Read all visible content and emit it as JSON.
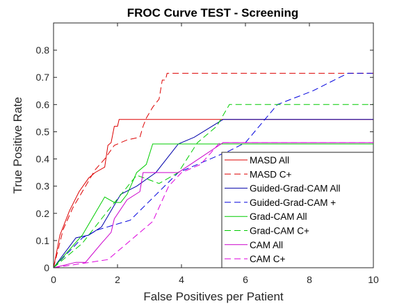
{
  "chart_data": {
    "type": "line",
    "title": "FROC Curve TEST - Screening",
    "xlabel": "False Positives per Patient",
    "ylabel": "True Positive Rate",
    "xlim": [
      0,
      10
    ],
    "ylim": [
      0,
      0.9
    ],
    "xticks": [
      0,
      2,
      4,
      6,
      8,
      10
    ],
    "yticks": [
      0,
      0.1,
      0.2,
      0.3,
      0.4,
      0.5,
      0.6,
      0.7,
      0.8
    ],
    "grid": false,
    "legend_position": "bottom-right",
    "series": [
      {
        "name": "MASD All",
        "color": "#dd0000",
        "dash": "solid",
        "points": [
          [
            0,
            0
          ],
          [
            0.2,
            0.12
          ],
          [
            0.5,
            0.21
          ],
          [
            0.8,
            0.28
          ],
          [
            1.1,
            0.33
          ],
          [
            1.3,
            0.35
          ],
          [
            1.6,
            0.37
          ],
          [
            1.65,
            0.41
          ],
          [
            1.7,
            0.45
          ],
          [
            1.8,
            0.46
          ],
          [
            1.9,
            0.52
          ],
          [
            2.0,
            0.52
          ],
          [
            2.05,
            0.545
          ],
          [
            4.0,
            0.545
          ],
          [
            10,
            0.545
          ]
        ]
      },
      {
        "name": "MASD C+",
        "color": "#dd0000",
        "dash": "dashed",
        "points": [
          [
            0,
            0
          ],
          [
            0.3,
            0.14
          ],
          [
            0.6,
            0.22
          ],
          [
            1.0,
            0.3
          ],
          [
            1.3,
            0.36
          ],
          [
            1.6,
            0.4
          ],
          [
            1.9,
            0.45
          ],
          [
            2.3,
            0.47
          ],
          [
            2.7,
            0.48
          ],
          [
            2.8,
            0.52
          ],
          [
            2.9,
            0.55
          ],
          [
            3.1,
            0.59
          ],
          [
            3.3,
            0.62
          ],
          [
            3.4,
            0.69
          ],
          [
            3.5,
            0.69
          ],
          [
            3.55,
            0.715
          ],
          [
            10,
            0.715
          ]
        ]
      },
      {
        "name": "Guided-Grad-CAM All",
        "color": "#0000aa",
        "dash": "solid",
        "points": [
          [
            0,
            0
          ],
          [
            0.7,
            0.11
          ],
          [
            1.1,
            0.12
          ],
          [
            1.5,
            0.15
          ],
          [
            2.1,
            0.27
          ],
          [
            2.6,
            0.3
          ],
          [
            3.2,
            0.35
          ],
          [
            3.9,
            0.455
          ],
          [
            4.4,
            0.48
          ],
          [
            5.3,
            0.545
          ],
          [
            10,
            0.545
          ]
        ]
      },
      {
        "name": "Guided-Grad-CAM +",
        "color": "#0000dd",
        "dash": "dashed",
        "points": [
          [
            0,
            0
          ],
          [
            0.9,
            0.11
          ],
          [
            1.4,
            0.14
          ],
          [
            2.4,
            0.175
          ],
          [
            3.9,
            0.35
          ],
          [
            4.9,
            0.4
          ],
          [
            5.5,
            0.43
          ],
          [
            6.0,
            0.46
          ],
          [
            7.0,
            0.6
          ],
          [
            8.1,
            0.65
          ],
          [
            9.2,
            0.715
          ],
          [
            10,
            0.715
          ]
        ]
      },
      {
        "name": "Grad-CAM All",
        "color": "#00cc00",
        "dash": "solid",
        "points": [
          [
            0,
            0
          ],
          [
            0.9,
            0.12
          ],
          [
            1.3,
            0.2
          ],
          [
            1.6,
            0.26
          ],
          [
            1.9,
            0.24
          ],
          [
            2.1,
            0.24
          ],
          [
            2.3,
            0.27
          ],
          [
            2.6,
            0.35
          ],
          [
            2.9,
            0.38
          ],
          [
            3.1,
            0.455
          ],
          [
            10,
            0.455
          ]
        ]
      },
      {
        "name": "Grad-CAM C+",
        "color": "#00cc00",
        "dash": "dashed",
        "points": [
          [
            0,
            0
          ],
          [
            0.9,
            0.09
          ],
          [
            1.7,
            0.21
          ],
          [
            2.6,
            0.34
          ],
          [
            3.3,
            0.31
          ],
          [
            3.9,
            0.35
          ],
          [
            4.5,
            0.46
          ],
          [
            5.1,
            0.52
          ],
          [
            5.5,
            0.6
          ],
          [
            10,
            0.6
          ]
        ]
      },
      {
        "name": "CAM All",
        "color": "#cc00cc",
        "dash": "solid",
        "points": [
          [
            0,
            0
          ],
          [
            0.7,
            0.02
          ],
          [
            1.0,
            0.02
          ],
          [
            1.5,
            0.09
          ],
          [
            1.8,
            0.13
          ],
          [
            1.9,
            0.18
          ],
          [
            2.3,
            0.25
          ],
          [
            2.7,
            0.28
          ],
          [
            2.8,
            0.35
          ],
          [
            3.9,
            0.35
          ],
          [
            5.3,
            0.46
          ],
          [
            10,
            0.46
          ]
        ]
      },
      {
        "name": "CAM C+",
        "color": "#dd00dd",
        "dash": "dashed",
        "points": [
          [
            0,
            0
          ],
          [
            1.7,
            0.03
          ],
          [
            2.5,
            0.11
          ],
          [
            3.1,
            0.17
          ],
          [
            3.6,
            0.3
          ],
          [
            4.0,
            0.35
          ],
          [
            4.6,
            0.38
          ],
          [
            5.2,
            0.46
          ],
          [
            10,
            0.46
          ]
        ]
      }
    ]
  }
}
